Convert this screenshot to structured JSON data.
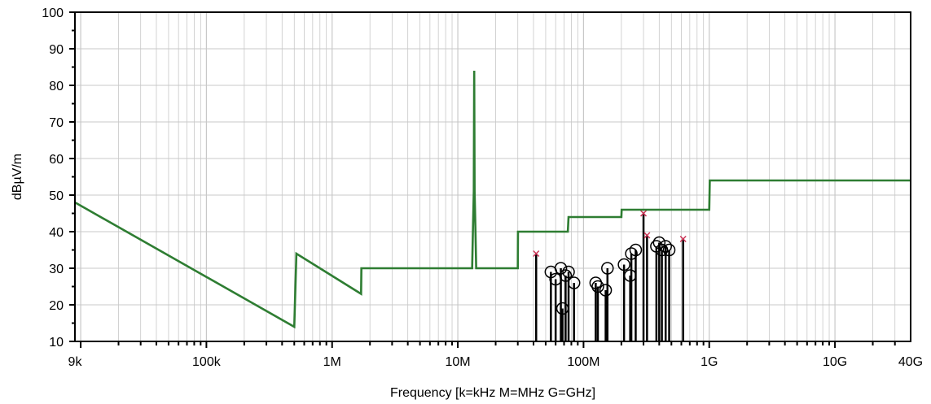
{
  "chart_data": {
    "type": "line",
    "title": "",
    "xlabel": "Frequency [k=kHz M=MHz G=GHz]",
    "ylabel": "dBµV/m",
    "x_scale": "log",
    "xlim_hz": [
      9000,
      40000000000
    ],
    "ylim": [
      10,
      100
    ],
    "grid": true,
    "legend": "none",
    "x_ticks": [
      {
        "value": 9000,
        "label": "9k"
      },
      {
        "value": 100000,
        "label": "100k"
      },
      {
        "value": 1000000,
        "label": "1M"
      },
      {
        "value": 10000000,
        "label": "10M"
      },
      {
        "value": 100000000,
        "label": "100M"
      },
      {
        "value": 1000000000,
        "label": "1G"
      },
      {
        "value": 10000000000,
        "label": "10G"
      },
      {
        "value": 40000000000,
        "label": "40G"
      }
    ],
    "y_ticks": [
      10,
      20,
      30,
      40,
      50,
      60,
      70,
      80,
      90,
      100
    ],
    "colors": {
      "limit_line": "#2e7d32",
      "measurement_stems": "#000000",
      "peak_markers": "#cc3355",
      "grid": "#c8c8c8",
      "frame": "#000000"
    },
    "limit_line": {
      "points": [
        [
          9000,
          48
        ],
        [
          500000,
          14
        ],
        [
          520000,
          34
        ],
        [
          1700000,
          23
        ],
        [
          1710000,
          30
        ],
        [
          13000000,
          30
        ],
        [
          13200000,
          41
        ],
        [
          13400000,
          51
        ],
        [
          13500000,
          84
        ],
        [
          13600000,
          51
        ],
        [
          13800000,
          41
        ],
        [
          14000000,
          30
        ],
        [
          30000000,
          30
        ],
        [
          30100000,
          40
        ],
        [
          75000000,
          40
        ],
        [
          76000000,
          44
        ],
        [
          200000000,
          44
        ],
        [
          201000000,
          46
        ],
        [
          1000000000,
          46
        ],
        [
          1010000000,
          54
        ],
        [
          40000000000,
          54
        ]
      ]
    },
    "measurements": [
      {
        "f": 42000000,
        "level": 34,
        "marker": "x"
      },
      {
        "f": 55000000,
        "level": 29,
        "marker": "o"
      },
      {
        "f": 60000000,
        "level": 27,
        "marker": "o"
      },
      {
        "f": 66000000,
        "level": 30,
        "marker": "o"
      },
      {
        "f": 68000000,
        "level": 19,
        "marker": "o"
      },
      {
        "f": 72000000,
        "level": 28,
        "marker": "o"
      },
      {
        "f": 76000000,
        "level": 29,
        "marker": "o"
      },
      {
        "f": 84000000,
        "level": 26,
        "marker": "o"
      },
      {
        "f": 125000000,
        "level": 26,
        "marker": "o"
      },
      {
        "f": 130000000,
        "level": 25,
        "marker": "o"
      },
      {
        "f": 150000000,
        "level": 24,
        "marker": "o"
      },
      {
        "f": 155000000,
        "level": 30,
        "marker": "o"
      },
      {
        "f": 210000000,
        "level": 31,
        "marker": "o"
      },
      {
        "f": 235000000,
        "level": 28,
        "marker": "o"
      },
      {
        "f": 240000000,
        "level": 34,
        "marker": "o"
      },
      {
        "f": 260000000,
        "level": 35,
        "marker": "o"
      },
      {
        "f": 300000000,
        "level": 45,
        "marker": "x"
      },
      {
        "f": 320000000,
        "level": 39,
        "marker": "x"
      },
      {
        "f": 380000000,
        "level": 36,
        "marker": "o"
      },
      {
        "f": 400000000,
        "level": 37,
        "marker": "o"
      },
      {
        "f": 420000000,
        "level": 35,
        "marker": "o"
      },
      {
        "f": 450000000,
        "level": 36,
        "marker": "o"
      },
      {
        "f": 480000000,
        "level": 35,
        "marker": "o"
      },
      {
        "f": 620000000,
        "level": 38,
        "marker": "x"
      }
    ]
  }
}
